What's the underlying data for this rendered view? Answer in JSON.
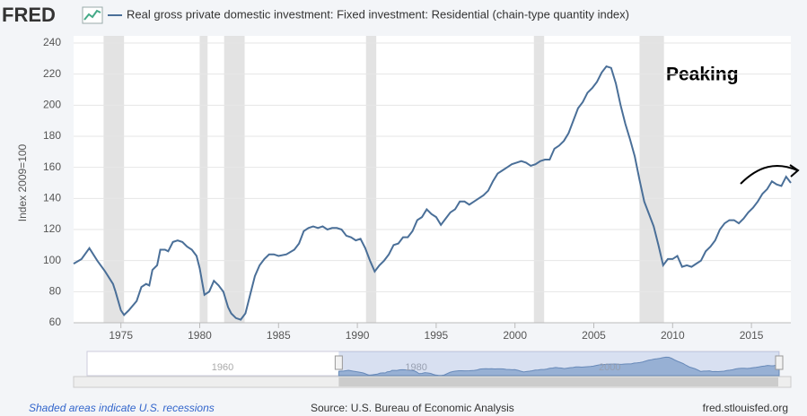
{
  "logo": "FRED",
  "chart_data": {
    "type": "line",
    "series": [
      {
        "name": "Real gross private domestic investment: Fixed investment: Residential (chain-type quantity index)",
        "color": "#4a6f98",
        "x": [
          1972.0,
          1972.5,
          1973.0,
          1973.5,
          1974.0,
          1974.5,
          1974.66,
          1975.0,
          1975.2,
          1975.5,
          1976.0,
          1976.3,
          1976.6,
          1976.8,
          1977.0,
          1977.3,
          1977.5,
          1977.8,
          1978.0,
          1978.3,
          1978.6,
          1978.9,
          1979.2,
          1979.5,
          1979.8,
          1980.0,
          1980.3,
          1980.6,
          1980.9,
          1981.2,
          1981.5,
          1981.8,
          1982.0,
          1982.3,
          1982.6,
          1982.9,
          1983.2,
          1983.5,
          1983.8,
          1984.1,
          1984.4,
          1984.7,
          1985.0,
          1985.5,
          1986.0,
          1986.3,
          1986.6,
          1986.9,
          1987.2,
          1987.5,
          1987.8,
          1988.1,
          1988.4,
          1988.7,
          1989.0,
          1989.3,
          1989.6,
          1989.9,
          1990.2,
          1990.5,
          1990.8,
          1991.1,
          1991.4,
          1991.7,
          1992.0,
          1992.3,
          1992.6,
          1992.9,
          1993.2,
          1993.5,
          1993.8,
          1994.1,
          1994.4,
          1994.7,
          1995.0,
          1995.3,
          1995.6,
          1995.9,
          1996.2,
          1996.5,
          1996.8,
          1997.1,
          1997.4,
          1997.7,
          1998.0,
          1998.3,
          1998.6,
          1998.9,
          1999.2,
          1999.5,
          1999.8,
          2000.1,
          2000.4,
          2000.7,
          2001.0,
          2001.3,
          2001.6,
          2001.9,
          2002.2,
          2002.5,
          2002.8,
          2003.1,
          2003.4,
          2003.7,
          2004.0,
          2004.3,
          2004.6,
          2004.9,
          2005.2,
          2005.5,
          2005.8,
          2006.1,
          2006.4,
          2006.7,
          2007.0,
          2007.3,
          2007.6,
          2007.9,
          2008.2,
          2008.5,
          2008.8,
          2009.1,
          2009.4,
          2009.7,
          2010.0,
          2010.3,
          2010.6,
          2010.9,
          2011.2,
          2011.5,
          2011.8,
          2012.1,
          2012.4,
          2012.7,
          2013.0,
          2013.3,
          2013.6,
          2013.9,
          2014.2,
          2014.5,
          2014.8,
          2015.1,
          2015.4,
          2015.7,
          2016.0,
          2016.3,
          2016.6,
          2016.9,
          2017.2,
          2017.5
        ],
        "values": [
          98,
          101,
          108,
          100,
          93,
          85,
          80,
          68,
          65,
          68,
          74,
          83,
          85,
          84,
          94,
          97,
          107,
          107,
          106,
          112,
          113,
          112,
          109,
          107,
          103,
          95,
          78,
          80,
          87,
          84,
          80,
          70,
          66,
          63,
          62,
          66,
          78,
          90,
          97,
          101,
          104,
          104,
          103,
          104,
          107,
          111,
          119,
          121,
          122,
          121,
          122,
          120,
          121,
          121,
          120,
          116,
          115,
          113,
          114,
          108,
          100,
          93,
          97,
          100,
          104,
          110,
          111,
          115,
          115,
          119,
          126,
          128,
          133,
          130,
          128,
          123,
          127,
          131,
          133,
          138,
          138,
          136,
          138,
          140,
          142,
          145,
          151,
          156,
          158,
          160,
          162,
          163,
          164,
          163,
          161,
          162,
          164,
          165,
          165,
          172,
          174,
          177,
          182,
          190,
          198,
          202,
          208,
          211,
          215,
          221,
          225,
          224,
          214,
          200,
          188,
          178,
          167,
          152,
          138,
          130,
          122,
          110,
          97,
          101,
          101,
          103,
          96,
          97,
          96,
          98,
          100,
          106,
          109,
          113,
          120,
          124,
          126,
          126,
          124,
          127,
          131,
          134,
          138,
          143,
          146,
          151,
          149,
          148,
          154,
          150
        ]
      }
    ],
    "recessions": [
      [
        1973.9,
        1975.2
      ],
      [
        1980.0,
        1980.5
      ],
      [
        1981.55,
        1982.85
      ],
      [
        1990.55,
        1991.2
      ],
      [
        2001.2,
        2001.85
      ],
      [
        2007.9,
        2009.45
      ]
    ],
    "ylabel": "Index 2009=100",
    "xlim": [
      1972,
      2017.5
    ],
    "xticks": [
      1975,
      1980,
      1985,
      1990,
      1995,
      2000,
      2005,
      2010,
      2015
    ],
    "ylim": [
      60,
      240
    ],
    "yticks": [
      60,
      80,
      100,
      120,
      140,
      160,
      180,
      200,
      220,
      240
    ],
    "grid": true,
    "annotation": "Peaking",
    "navigator": {
      "xlim": [
        1946,
        2017.5
      ],
      "xticks": [
        1960,
        1980,
        2000
      ]
    }
  },
  "footer": {
    "note": "Shaded areas indicate U.S. recessions",
    "source": "Source: U.S. Bureau of Economic Analysis",
    "site": "fred.stlouisfed.org"
  }
}
